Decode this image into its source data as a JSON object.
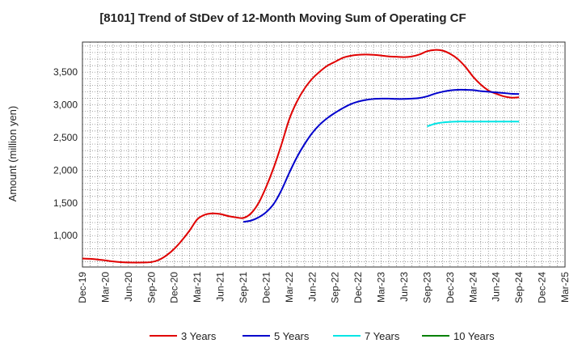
{
  "chart_data": {
    "type": "line",
    "title": "[8101]  Trend of StDev of 12-Month Moving Sum of Operating CF",
    "xlabel": "",
    "ylabel": "Amount (million yen)",
    "x_ticks": [
      "Dec-19",
      "Mar-20",
      "Jun-20",
      "Sep-20",
      "Dec-20",
      "Mar-21",
      "Jun-21",
      "Sep-21",
      "Dec-21",
      "Mar-22",
      "Jun-22",
      "Sep-22",
      "Dec-22",
      "Mar-23",
      "Jun-23",
      "Sep-23",
      "Dec-23",
      "Mar-24",
      "Jun-24",
      "Sep-24",
      "Dec-24",
      "Mar-25"
    ],
    "y_ticks": [
      1000,
      1500,
      2000,
      2500,
      3000,
      3500
    ],
    "y_tick_labels": [
      "1,000",
      "1,500",
      "2,000",
      "2,500",
      "3,000",
      "3,500"
    ],
    "ylim": [
      520,
      3960
    ],
    "grid": true,
    "legend_position": "bottom",
    "series": [
      {
        "name": "3 Years",
        "color": "#e00000",
        "x": [
          "Dec-19",
          "Jan-20",
          "Feb-20",
          "Mar-20",
          "Apr-20",
          "May-20",
          "Jun-20",
          "Jul-20",
          "Aug-20",
          "Sep-20",
          "Oct-20",
          "Nov-20",
          "Dec-20",
          "Jan-21",
          "Feb-21",
          "Mar-21",
          "Apr-21",
          "May-21",
          "Jun-21",
          "Jul-21",
          "Aug-21",
          "Sep-21",
          "Oct-21",
          "Nov-21",
          "Dec-21",
          "Jan-22",
          "Feb-22",
          "Mar-22",
          "Apr-22",
          "May-22",
          "Jun-22",
          "Jul-22",
          "Aug-22",
          "Sep-22",
          "Oct-22",
          "Nov-22",
          "Dec-22",
          "Jan-23",
          "Feb-23",
          "Mar-23",
          "Apr-23",
          "May-23",
          "Jun-23",
          "Jul-23",
          "Aug-23",
          "Sep-23",
          "Oct-23",
          "Nov-23",
          "Dec-23",
          "Jan-24",
          "Feb-24",
          "Mar-24",
          "Apr-24",
          "May-24",
          "Jun-24",
          "Jul-24",
          "Aug-24",
          "Sep-24"
        ],
        "values": [
          650,
          645,
          635,
          620,
          605,
          595,
          590,
          588,
          590,
          595,
          630,
          700,
          800,
          930,
          1080,
          1250,
          1320,
          1340,
          1330,
          1300,
          1280,
          1270,
          1340,
          1500,
          1750,
          2050,
          2400,
          2780,
          3050,
          3250,
          3400,
          3510,
          3600,
          3660,
          3720,
          3750,
          3765,
          3770,
          3765,
          3755,
          3740,
          3735,
          3730,
          3740,
          3770,
          3820,
          3840,
          3830,
          3780,
          3700,
          3580,
          3430,
          3310,
          3220,
          3170,
          3130,
          3110,
          3115
        ]
      },
      {
        "name": "5 Years",
        "color": "#0000cc",
        "x": [
          "Sep-21",
          "Oct-21",
          "Nov-21",
          "Dec-21",
          "Jan-22",
          "Feb-22",
          "Mar-22",
          "Apr-22",
          "May-22",
          "Jun-22",
          "Jul-22",
          "Aug-22",
          "Sep-22",
          "Oct-22",
          "Nov-22",
          "Dec-22",
          "Jan-23",
          "Feb-23",
          "Mar-23",
          "Apr-23",
          "May-23",
          "Jun-23",
          "Jul-23",
          "Aug-23",
          "Sep-23",
          "Oct-23",
          "Nov-23",
          "Dec-23",
          "Jan-24",
          "Feb-24",
          "Mar-24",
          "Apr-24",
          "May-24",
          "Jun-24",
          "Jul-24",
          "Aug-24",
          "Sep-24"
        ],
        "values": [
          1210,
          1230,
          1280,
          1360,
          1490,
          1700,
          1960,
          2200,
          2400,
          2570,
          2700,
          2800,
          2880,
          2950,
          3010,
          3050,
          3075,
          3090,
          3095,
          3095,
          3090,
          3090,
          3095,
          3105,
          3130,
          3170,
          3200,
          3220,
          3230,
          3230,
          3225,
          3210,
          3200,
          3190,
          3180,
          3170,
          3165
        ]
      },
      {
        "name": "7 Years",
        "color": "#00e5e5",
        "x": [
          "Sep-23",
          "Oct-23",
          "Nov-23",
          "Dec-23",
          "Jan-24",
          "Feb-24",
          "Mar-24",
          "Apr-24",
          "May-24",
          "Jun-24",
          "Jul-24",
          "Aug-24",
          "Sep-24"
        ],
        "values": [
          2670,
          2710,
          2730,
          2740,
          2745,
          2745,
          2745,
          2745,
          2745,
          2745,
          2745,
          2745,
          2745
        ]
      },
      {
        "name": "10 Years",
        "color": "#008000",
        "x": [],
        "values": []
      }
    ]
  }
}
